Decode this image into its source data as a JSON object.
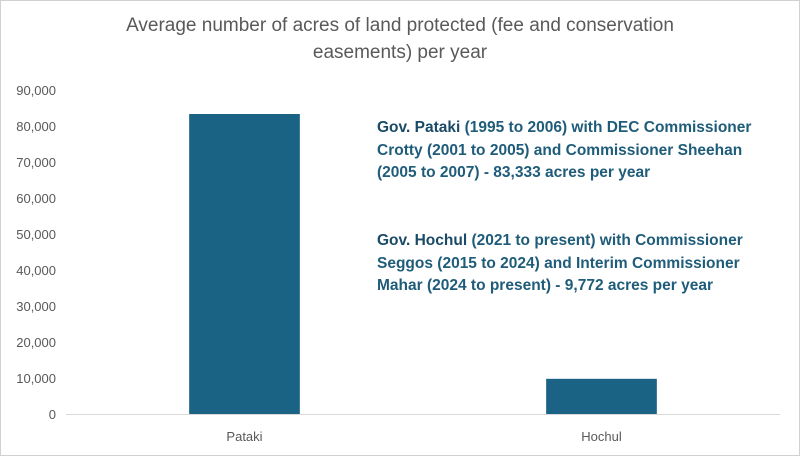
{
  "chart_data": {
    "type": "bar",
    "title_lines": [
      "Average number of acres of land protected (fee and conservation",
      "easements) per year"
    ],
    "categories": [
      "Pataki",
      "Hochul"
    ],
    "values": [
      83333,
      9772
    ],
    "ylim": [
      0,
      90000
    ],
    "yticks": [
      "0",
      "10,000",
      "20,000",
      "30,000",
      "40,000",
      "50,000",
      "60,000",
      "70,000",
      "80,000",
      "90,000"
    ],
    "grid": false,
    "bar_color": "#1b6385",
    "annotations": [
      {
        "bold": "Gov. Pataki",
        "text": " (1995 to 2006) with DEC Commissioner Crotty (2001 to 2005) and Commissioner Sheehan (2005 to 2007) - 83,333 acres per year"
      },
      {
        "bold": "Gov. Hochul",
        "text": " (2021 to present) with Commissioner Seggos (2015 to 2024) and Interim Commissioner Mahar (2024 to present) - 9,772 acres per year"
      }
    ]
  }
}
